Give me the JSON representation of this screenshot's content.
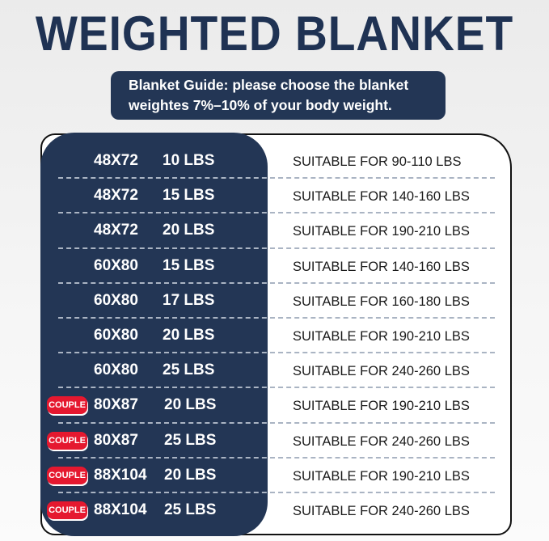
{
  "title": "WEIGHTED BLANKET",
  "guide": {
    "line1": "Blanket Guide: please choose the blanket",
    "line2": "weightes 7%–10% of your body weight."
  },
  "colors": {
    "navy": "#233655",
    "badge_red": "#e5182f",
    "title": "#1f3253"
  },
  "rows": [
    {
      "badge": "",
      "size": "48X72",
      "weight": "10 LBS",
      "suitable": "SUITABLE FOR 90-110 LBS"
    },
    {
      "badge": "",
      "size": "48X72",
      "weight": "15 LBS",
      "suitable": "SUITABLE FOR 140-160 LBS"
    },
    {
      "badge": "",
      "size": "48X72",
      "weight": "20 LBS",
      "suitable": "SUITABLE FOR 190-210 LBS"
    },
    {
      "badge": "",
      "size": "60X80",
      "weight": "15 LBS",
      "suitable": "SUITABLE FOR 140-160 LBS"
    },
    {
      "badge": "",
      "size": "60X80",
      "weight": "17 LBS",
      "suitable": "SUITABLE FOR 160-180 LBS"
    },
    {
      "badge": "",
      "size": "60X80",
      "weight": "20 LBS",
      "suitable": "SUITABLE FOR 190-210 LBS"
    },
    {
      "badge": "",
      "size": "60X80",
      "weight": "25 LBS",
      "suitable": "SUITABLE FOR 240-260 LBS"
    },
    {
      "badge": "COUPLE",
      "size": "80X87",
      "weight": "20 LBS",
      "suitable": "SUITABLE FOR 190-210 LBS"
    },
    {
      "badge": "COUPLE",
      "size": "80X87",
      "weight": "25 LBS",
      "suitable": "SUITABLE FOR 240-260 LBS"
    },
    {
      "badge": "COUPLE",
      "size": "88X104",
      "weight": "20 LBS",
      "suitable": "SUITABLE FOR 190-210 LBS"
    },
    {
      "badge": "COUPLE",
      "size": "88X104",
      "weight": "25 LBS",
      "suitable": "SUITABLE FOR 240-260 LBS"
    }
  ]
}
